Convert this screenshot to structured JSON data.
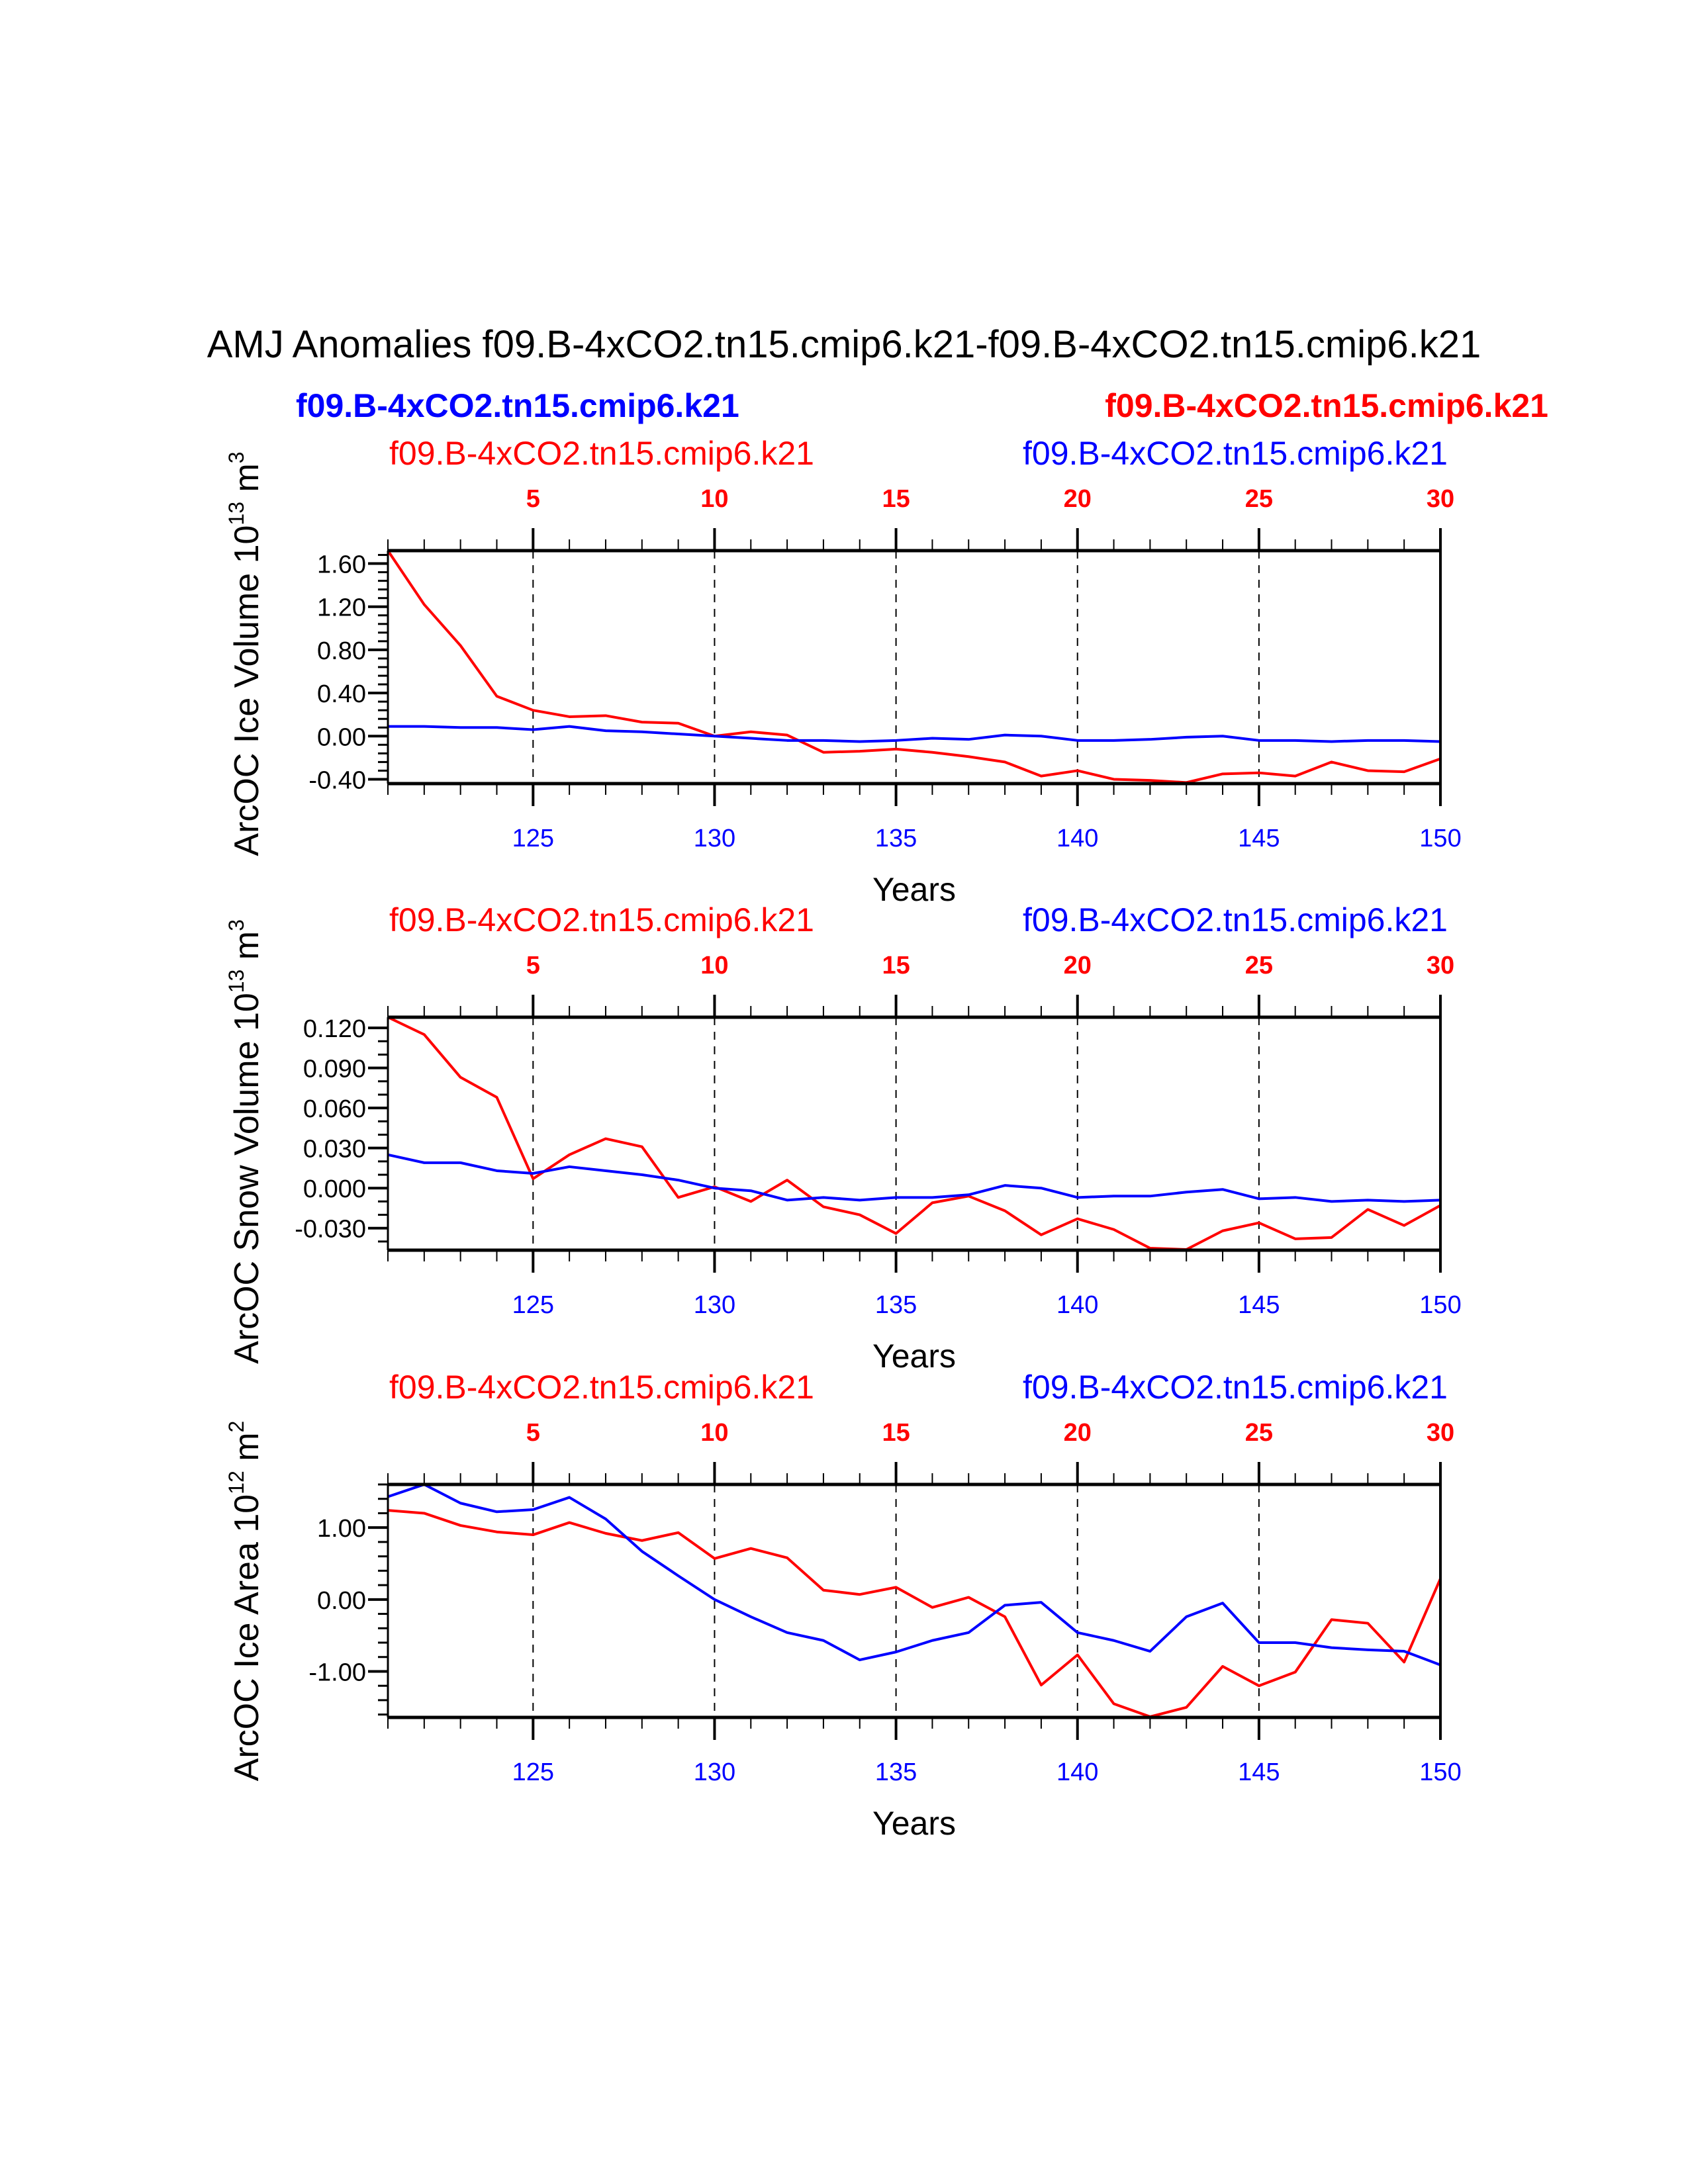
{
  "title": "AMJ Anomalies f09.B-4xCO2.tn15.cmip6.k21-f09.B-4xCO2.tn15.cmip6.k21",
  "colors": {
    "red": "#ff0000",
    "blue": "#0000ff",
    "axis": "#000000"
  },
  "chart_data": [
    {
      "type": "line",
      "title_left": "f09.B-4xCO2.tn15.cmip6.k21",
      "title_right": "f09.B-4xCO2.tn15.cmip6.k21",
      "overlay_left": "f09.B-4xCO2.tn15.cmip6.k21",
      "overlay_right": "f09.B-4xCO2.tn15.cmip6.k21",
      "ylabel": "ArcOC Ice Volume 10",
      "ylabel_exp": "13",
      "ylabel_unit": " m",
      "ylabel_unit_exp": "3",
      "xlabel": "Years",
      "xlim": [
        121,
        150
      ],
      "ylim": [
        -0.44,
        1.72
      ],
      "yticks": [
        1.6,
        1.2,
        0.8,
        0.4,
        0.0,
        -0.4
      ],
      "ytick_labels": [
        "1.60",
        "1.20",
        "0.80",
        "0.40",
        "0.00",
        "-0.40"
      ],
      "yminor_step": 0.08,
      "xticks": [
        125,
        130,
        135,
        140,
        145,
        150
      ],
      "xtick_labels": [
        "125",
        "130",
        "135",
        "140",
        "145",
        "150"
      ],
      "top_ticks": [
        "5",
        "10",
        "15",
        "20",
        "25",
        "30"
      ],
      "x": [
        121,
        122,
        123,
        124,
        125,
        126,
        127,
        128,
        129,
        130,
        131,
        132,
        133,
        134,
        135,
        136,
        137,
        138,
        139,
        140,
        141,
        142,
        143,
        144,
        145,
        146,
        147,
        148,
        149,
        150
      ],
      "series": [
        {
          "name": "f09.B-4xCO2.tn15.cmip6.k21",
          "color": "#ff0000",
          "values": [
            1.72,
            1.22,
            0.84,
            0.37,
            0.24,
            0.18,
            0.19,
            0.13,
            0.12,
            0.0,
            0.04,
            0.01,
            -0.15,
            -0.14,
            -0.12,
            -0.15,
            -0.19,
            -0.24,
            -0.37,
            -0.32,
            -0.4,
            -0.41,
            -0.43,
            -0.35,
            -0.34,
            -0.37,
            -0.24,
            -0.32,
            -0.33,
            -0.21
          ]
        },
        {
          "name": "f09.B-4xCO2.tn15.cmip6.k21",
          "color": "#0000ff",
          "values": [
            0.09,
            0.09,
            0.08,
            0.08,
            0.06,
            0.09,
            0.05,
            0.04,
            0.02,
            0.0,
            -0.02,
            -0.04,
            -0.04,
            -0.05,
            -0.04,
            -0.02,
            -0.03,
            0.01,
            0.0,
            -0.04,
            -0.04,
            -0.03,
            -0.01,
            0.0,
            -0.04,
            -0.04,
            -0.05,
            -0.04,
            -0.04,
            -0.05
          ]
        }
      ]
    },
    {
      "type": "line",
      "title_left": "f09.B-4xCO2.tn15.cmip6.k21",
      "title_right": "f09.B-4xCO2.tn15.cmip6.k21",
      "ylabel": "ArcOC Snow Volume 10",
      "ylabel_exp": "13",
      "ylabel_unit": " m",
      "ylabel_unit_exp": "3",
      "xlabel": "Years",
      "xlim": [
        121,
        150
      ],
      "ylim": [
        -0.0465,
        0.128
      ],
      "yticks": [
        0.12,
        0.09,
        0.06,
        0.03,
        0.0,
        -0.03
      ],
      "ytick_labels": [
        "0.120",
        "0.090",
        "0.060",
        "0.030",
        "0.000",
        "-0.030"
      ],
      "yminor_step": 0.01,
      "xticks": [
        125,
        130,
        135,
        140,
        145,
        150
      ],
      "xtick_labels": [
        "125",
        "130",
        "135",
        "140",
        "145",
        "150"
      ],
      "top_ticks": [
        "5",
        "10",
        "15",
        "20",
        "25",
        "30"
      ],
      "x": [
        121,
        122,
        123,
        124,
        125,
        126,
        127,
        128,
        129,
        130,
        131,
        132,
        133,
        134,
        135,
        136,
        137,
        138,
        139,
        140,
        141,
        142,
        143,
        144,
        145,
        146,
        147,
        148,
        149,
        150
      ],
      "series": [
        {
          "name": "f09.B-4xCO2.tn15.cmip6.k21",
          "color": "#ff0000",
          "values": [
            0.128,
            0.115,
            0.083,
            0.068,
            0.007,
            0.025,
            0.037,
            0.031,
            -0.007,
            0.001,
            -0.01,
            0.006,
            -0.014,
            -0.02,
            -0.034,
            -0.011,
            -0.006,
            -0.017,
            -0.035,
            -0.023,
            -0.031,
            -0.045,
            -0.046,
            -0.032,
            -0.026,
            -0.038,
            -0.037,
            -0.016,
            -0.028,
            -0.013
          ]
        },
        {
          "name": "f09.B-4xCO2.tn15.cmip6.k21",
          "color": "#0000ff",
          "values": [
            0.025,
            0.019,
            0.019,
            0.013,
            0.011,
            0.016,
            0.013,
            0.01,
            0.006,
            0.0,
            -0.002,
            -0.009,
            -0.007,
            -0.009,
            -0.007,
            -0.007,
            -0.005,
            0.002,
            0.0,
            -0.007,
            -0.006,
            -0.006,
            -0.003,
            -0.001,
            -0.008,
            -0.007,
            -0.01,
            -0.009,
            -0.01,
            -0.009
          ]
        }
      ]
    },
    {
      "type": "line",
      "title_left": "f09.B-4xCO2.tn15.cmip6.k21",
      "title_right": "f09.B-4xCO2.tn15.cmip6.k21",
      "ylabel": "ArcOC Ice Area 10",
      "ylabel_exp": "12",
      "ylabel_unit": " m",
      "ylabel_unit_exp": "2",
      "xlabel": "Years",
      "xlim": [
        121,
        150
      ],
      "ylim": [
        -1.64,
        1.6
      ],
      "yticks": [
        1.0,
        0.0,
        -1.0
      ],
      "ytick_labels": [
        "1.00",
        "0.00",
        "-1.00"
      ],
      "yminor_step": 0.2,
      "xticks": [
        125,
        130,
        135,
        140,
        145,
        150
      ],
      "xtick_labels": [
        "125",
        "130",
        "135",
        "140",
        "145",
        "150"
      ],
      "top_ticks": [
        "5",
        "10",
        "15",
        "20",
        "25",
        "30"
      ],
      "x": [
        121,
        122,
        123,
        124,
        125,
        126,
        127,
        128,
        129,
        130,
        131,
        132,
        133,
        134,
        135,
        136,
        137,
        138,
        139,
        140,
        141,
        142,
        143,
        144,
        145,
        146,
        147,
        148,
        149,
        150
      ],
      "series": [
        {
          "name": "f09.B-4xCO2.tn15.cmip6.k21",
          "color": "#ff0000",
          "values": [
            1.24,
            1.2,
            1.03,
            0.94,
            0.9,
            1.07,
            0.92,
            0.82,
            0.93,
            0.57,
            0.71,
            0.58,
            0.13,
            0.07,
            0.17,
            -0.11,
            0.03,
            -0.24,
            -1.19,
            -0.77,
            -1.45,
            -1.63,
            -1.5,
            -0.93,
            -1.2,
            -1.01,
            -0.28,
            -0.33,
            -0.87,
            0.29
          ]
        },
        {
          "name": "f09.B-4xCO2.tn15.cmip6.k21",
          "color": "#0000ff",
          "values": [
            1.43,
            1.6,
            1.34,
            1.22,
            1.25,
            1.42,
            1.12,
            0.67,
            0.33,
            0.0,
            -0.24,
            -0.46,
            -0.57,
            -0.84,
            -0.73,
            -0.57,
            -0.46,
            -0.08,
            -0.04,
            -0.46,
            -0.57,
            -0.72,
            -0.24,
            -0.05,
            -0.6,
            -0.6,
            -0.67,
            -0.7,
            -0.72,
            -0.91
          ]
        }
      ]
    }
  ]
}
